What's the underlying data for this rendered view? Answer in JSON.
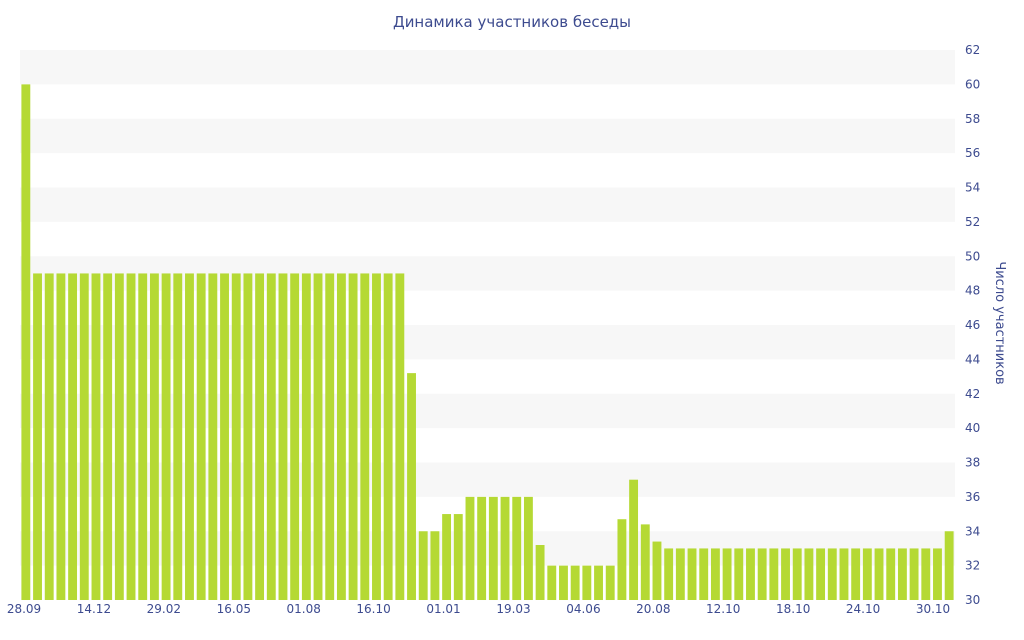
{
  "chart_data": {
    "type": "bar",
    "title": "Динамика участников беседы",
    "ylabel": "Число участников",
    "xlabel": "",
    "ylim": [
      30,
      62
    ],
    "yticks": [
      30,
      32,
      34,
      36,
      38,
      40,
      42,
      44,
      46,
      48,
      50,
      52,
      54,
      56,
      58,
      60,
      62
    ],
    "y_axis_position": "right",
    "grid": "alternating horizontal bands",
    "x_tick_labels": [
      "28.09",
      "14.12",
      "29.02",
      "16.05",
      "01.08",
      "16.10",
      "01.01",
      "19.03",
      "04.06",
      "20.08",
      "12.10",
      "18.10",
      "24.10",
      "30.10"
    ],
    "bar_color": "#b5d934",
    "band_color": "#f7f7f7",
    "text_color": "#3d4b8f",
    "values": [
      60,
      49,
      49,
      49,
      49,
      49,
      49,
      49,
      49,
      49,
      49,
      49,
      49,
      49,
      49,
      49,
      49,
      49,
      49,
      49,
      49,
      49,
      49,
      49,
      49,
      49,
      49,
      49,
      49,
      49,
      49,
      49,
      49,
      43.2,
      34,
      34,
      35,
      35,
      36,
      36,
      36,
      36,
      36,
      36,
      33.2,
      32,
      32,
      32,
      32,
      32,
      32,
      34.7,
      37,
      34.4,
      33.4,
      33,
      33,
      33,
      33,
      33,
      33,
      33,
      33,
      33,
      33,
      33,
      33,
      33,
      33,
      33,
      33,
      33,
      33,
      33,
      33,
      33,
      33,
      33,
      33,
      34
    ]
  }
}
